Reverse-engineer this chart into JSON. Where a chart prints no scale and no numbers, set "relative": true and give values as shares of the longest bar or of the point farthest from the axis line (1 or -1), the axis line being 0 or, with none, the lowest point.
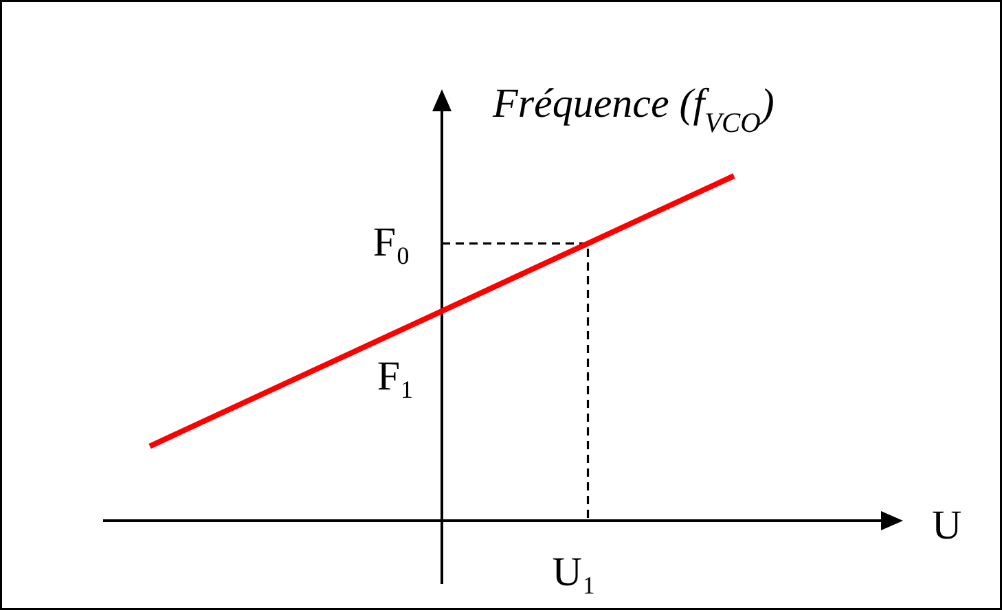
{
  "chart_data": {
    "type": "line",
    "relative": true,
    "xlabel": "U",
    "ylabel": "Fréquence (f$_{VCO}$)",
    "categories": [
      null,
      null,
      null,
      null,
      null
    ],
    "series": [
      {
        "color": "#ff0000",
        "values": [
          0.216,
          0.412,
          0.608,
          0.804,
          1
        ]
      }
    ],
    "ref_lines": [
      {
        "axis": "y",
        "value": 0.804,
        "label": "F₀",
        "color": "#000000",
        "line_style": "dashed"
      }
    ],
    "annotations": [
      "F₁",
      "U₁"
    ]
  }
}
